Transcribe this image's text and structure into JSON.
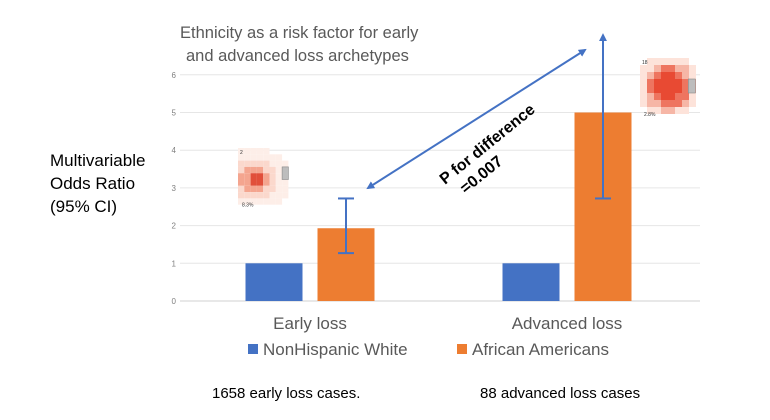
{
  "chart_data": {
    "type": "bar",
    "title": "Ethnicity as a risk factor for early and advanced loss archetypes",
    "title_lines": [
      "Ethnicity as a risk factor for early",
      "and advanced loss archetypes"
    ],
    "ylabel": "Multivariable Odds Ratio (95% CI)",
    "ylabel_lines": [
      "Multivariable",
      "Odds Ratio",
      "(95% CI)"
    ],
    "categories": [
      "Early loss",
      "Advanced loss"
    ],
    "series": [
      {
        "name": "NonHispanic White",
        "color": "#4472C4",
        "values": [
          1,
          1
        ]
      },
      {
        "name": "African Americans",
        "color": "#ED7D31",
        "values": [
          1.93,
          5.0
        ],
        "ci_low": [
          1.27,
          2.72
        ],
        "ci_high": [
          2.72,
          7.0
        ]
      }
    ],
    "ylim": [
      0,
      6
    ],
    "yticks": [
      "0",
      "1",
      "2",
      "3",
      "4",
      "5",
      "6"
    ],
    "grid": true,
    "legend_position": "bottom",
    "annotation": {
      "lines": [
        "P for difference",
        "=0.007"
      ]
    },
    "heatmap_labels": {
      "early": {
        "top": "2",
        "bottom": "8.3%"
      },
      "advanced": {
        "top": "18",
        "bottom": "2.8%"
      }
    },
    "case_counts": [
      "1658 early loss cases.",
      "88 advanced loss cases"
    ]
  }
}
